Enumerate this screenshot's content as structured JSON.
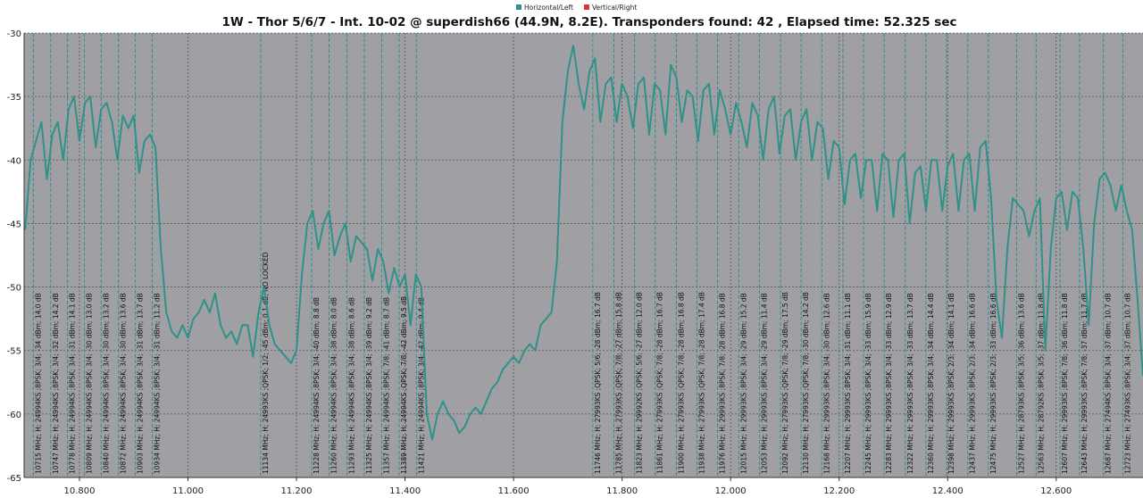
{
  "chart_data": {
    "type": "line",
    "title": "1W - Thor 5/6/7 - Int. 10-02 @ superdish66 (44.9N, 8.2E). Transponders found: 42 , Elapsed time: 52.325 sec",
    "xlim": [
      10698,
      12760
    ],
    "xticks": [
      {
        "value": 10800,
        "label": "10.800"
      },
      {
        "value": 11000,
        "label": "11.000"
      },
      {
        "value": 11200,
        "label": "11.200"
      },
      {
        "value": 11400,
        "label": "11.400"
      },
      {
        "value": 11600,
        "label": "11.600"
      },
      {
        "value": 11800,
        "label": "11.800"
      },
      {
        "value": 12000,
        "label": "12.000"
      },
      {
        "value": 12200,
        "label": "12.200"
      },
      {
        "value": 12400,
        "label": "12.400"
      },
      {
        "value": 12600,
        "label": "12.600"
      }
    ],
    "ylim": [
      -65,
      -30
    ],
    "yticks": [
      -30,
      -35,
      -40,
      -45,
      -50,
      -55,
      -60,
      -65
    ],
    "grid": true,
    "plot_color": "#a0a0a4",
    "x": [
      10700,
      10710,
      10720,
      10730,
      10740,
      10750,
      10760,
      10770,
      10780,
      10790,
      10800,
      10810,
      10820,
      10830,
      10840,
      10850,
      10860,
      10870,
      10880,
      10890,
      10900,
      10910,
      10920,
      10930,
      10940,
      10950,
      10960,
      10970,
      10980,
      10990,
      11000,
      11010,
      11020,
      11030,
      11040,
      11050,
      11060,
      11070,
      11080,
      11090,
      11100,
      11110,
      11120,
      11130,
      11140,
      11150,
      11160,
      11170,
      11180,
      11190,
      11200,
      11210,
      11220,
      11230,
      11240,
      11250,
      11260,
      11270,
      11280,
      11290,
      11300,
      11310,
      11320,
      11330,
      11340,
      11350,
      11360,
      11370,
      11380,
      11390,
      11400,
      11410,
      11420,
      11430,
      11440,
      11450,
      11460,
      11470,
      11480,
      11490,
      11500,
      11510,
      11520,
      11530,
      11540,
      11550,
      11560,
      11570,
      11580,
      11590,
      11600,
      11610,
      11620,
      11630,
      11640,
      11650,
      11660,
      11670,
      11680,
      11690,
      11700,
      11710,
      11720,
      11730,
      11740,
      11750,
      11760,
      11770,
      11780,
      11790,
      11800,
      11810,
      11820,
      11830,
      11840,
      11850,
      11860,
      11870,
      11880,
      11890,
      11900,
      11910,
      11920,
      11930,
      11940,
      11950,
      11960,
      11970,
      11980,
      11990,
      12000,
      12010,
      12020,
      12030,
      12040,
      12050,
      12060,
      12070,
      12080,
      12090,
      12100,
      12110,
      12120,
      12130,
      12140,
      12150,
      12160,
      12170,
      12180,
      12190,
      12200,
      12210,
      12220,
      12230,
      12240,
      12250,
      12260,
      12270,
      12280,
      12290,
      12300,
      12310,
      12320,
      12330,
      12340,
      12350,
      12360,
      12370,
      12380,
      12390,
      12400,
      12410,
      12420,
      12430,
      12440,
      12450,
      12460,
      12470,
      12480,
      12490,
      12500,
      12510,
      12520,
      12530,
      12540,
      12550,
      12560,
      12570,
      12580,
      12590,
      12600,
      12610,
      12620,
      12630,
      12640,
      12650,
      12660,
      12670,
      12680,
      12690,
      12700,
      12710,
      12720,
      12730,
      12740,
      12750,
      12760
    ],
    "series": [
      {
        "name": "Horizontal/Left",
        "color": "#2e918a",
        "values": [
          -45.5,
          -40,
          -38.5,
          -37,
          -41.5,
          -38,
          -37,
          -40,
          -36,
          -35,
          -38.5,
          -35.5,
          -35,
          -39,
          -36,
          -35.5,
          -37,
          -40,
          -36.5,
          -37.5,
          -36.5,
          -41,
          -38.5,
          -38,
          -39,
          -47,
          -52,
          -53.5,
          -54,
          -53,
          -54,
          -52.5,
          -52,
          -51,
          -52,
          -50.5,
          -53,
          -54,
          -53.5,
          -54.5,
          -53,
          -53,
          -55.5,
          -52,
          -50,
          -53,
          -54.5,
          -55,
          -55.5,
          -56,
          -55,
          -49,
          -45,
          -44,
          -47,
          -45,
          -44,
          -47.5,
          -46,
          -45,
          -48,
          -46,
          -46.5,
          -47,
          -49.5,
          -47,
          -48,
          -50.5,
          -48.5,
          -50,
          -49,
          -53,
          -49,
          -50,
          -60,
          -62,
          -60,
          -59,
          -60,
          -60.5,
          -61.5,
          -61,
          -60,
          -59.5,
          -60,
          -59,
          -58,
          -57.5,
          -56.5,
          -56,
          -55.5,
          -56,
          -55,
          -54.5,
          -55,
          -53,
          -52.5,
          -52,
          -48,
          -37,
          -33,
          -31,
          -34,
          -36,
          -33,
          -32,
          -37,
          -34,
          -33.5,
          -37,
          -34,
          -35,
          -37.5,
          -34,
          -33.5,
          -38,
          -34,
          -34.5,
          -38,
          -32.5,
          -33.5,
          -37,
          -34.5,
          -35,
          -38.5,
          -34.5,
          -34,
          -38,
          -34.5,
          -36,
          -38,
          -35.5,
          -37,
          -39,
          -35.5,
          -36.5,
          -40,
          -36,
          -35,
          -39.5,
          -36.5,
          -36,
          -40,
          -37,
          -36,
          -40,
          -37,
          -37.5,
          -41.5,
          -38.5,
          -39,
          -43.5,
          -40,
          -39.5,
          -43,
          -40,
          -40,
          -44,
          -39.5,
          -40,
          -44.5,
          -40,
          -39.5,
          -45,
          -41,
          -40.5,
          -44,
          -40,
          -40,
          -44,
          -40.5,
          -39.5,
          -44,
          -40,
          -39.5,
          -44,
          -39,
          -38.5,
          -43,
          -51,
          -54,
          -47,
          -43,
          -43.5,
          -44,
          -46,
          -44,
          -43,
          -55,
          -47,
          -43,
          -42.5,
          -45.5,
          -42.5,
          -43,
          -47,
          -53,
          -45,
          -41.5,
          -41,
          -42,
          -44,
          -42,
          -44,
          -45.5,
          -51,
          -57
        ]
      }
    ],
    "legend_items": [
      {
        "name": "Horizontal/Left",
        "color": "#2e918a"
      },
      {
        "name": "Vertical/Right",
        "color": "#d9343a"
      }
    ],
    "transponders": [
      {
        "freq": 10715,
        "label": "10715 MHz; H; 24994KS ;8PSK; 3/4; -34 dBm; 14.0 dB"
      },
      {
        "freq": 10747,
        "label": "10747 MHz; H; 24994KS ;8PSK; 3/4; -32 dBm; 14.2 dB"
      },
      {
        "freq": 10778,
        "label": "10778 MHz; H; 24994KS ;8PSK; 3/4; -31 dBm; 14.1 dB"
      },
      {
        "freq": 10809,
        "label": "10809 MHz; H; 24994KS ;8PSK; 3/4; -30 dBm; 13.0 dB"
      },
      {
        "freq": 10840,
        "label": "10840 MHz; H; 24994KS ;8PSK; 3/4; -30 dBm; 13.2 dB"
      },
      {
        "freq": 10872,
        "label": "10872 MHz; H; 24994KS ;8PSK; 3/4; -30 dBm; 13.6 dB"
      },
      {
        "freq": 10903,
        "label": "10903 MHz; H; 24994KS ;8PSK; 3/4; -31 dBm; 13.7 dB"
      },
      {
        "freq": 10934,
        "label": "10934 MHz; H; 24994KS ;8PSK; 3/4; -31 dBm; 11.2 dB"
      },
      {
        "freq": 11134,
        "label": "11134 MHz; H; 24993KS ;QPSK; 1/2; -45 dBm; 0.1 dB; NO LOCKED"
      },
      {
        "freq": 11228,
        "label": "11228 MHz; H; 24994KS ;8PSK; 3/4; -40 dBm; 8.8 dB"
      },
      {
        "freq": 11260,
        "label": "11260 MHz; H; 24994KS ;8PSK; 3/4; -38 dBm; 8.0 dB"
      },
      {
        "freq": 11293,
        "label": "11293 MHz; H; 24994KS ;8PSK; 3/4; -38 dBm; 8.6 dB"
      },
      {
        "freq": 11325,
        "label": "11325 MHz; H; 24994KS ;8PSK; 3/4; -39 dBm; 9.2 dB"
      },
      {
        "freq": 11357,
        "label": "11357 MHz; H; 24994KS ;8PSK; 7/8; -41 dBm; 8.7 dB"
      },
      {
        "freq": 11389,
        "label": "11389 MHz; H; 24994KS ;QPSK; 7/8; -42 dBm; 9.5 dB"
      },
      {
        "freq": 11421,
        "label": "11421 MHz; H; 24994KS ;8PSK; 3/4; -42 dBm; 9.4 dB"
      },
      {
        "freq": 11746,
        "label": "11746 MHz; H; 27993KS ;QPSK; 5/6; -28 dBm; 16.7 dB"
      },
      {
        "freq": 11785,
        "label": "11785 MHz; H; 27993KS ;QPSK; 7/8; -27 dBm; 15.8 dB"
      },
      {
        "freq": 11823,
        "label": "11823 MHz; H; 29992KS ;QPSK; 5/6; -27 dBm; 12.0 dB"
      },
      {
        "freq": 11861,
        "label": "11861 MHz; H; 27993KS ;QPSK; 7/8; -28 dBm; 16.7 dB"
      },
      {
        "freq": 11900,
        "label": "11900 MHz; H; 27993KS ;QPSK; 7/8; -28 dBm; 16.8 dB"
      },
      {
        "freq": 11938,
        "label": "11938 MHz; H; 27993KS ;QPSK; 7/8; -28 dBm; 17.4 dB"
      },
      {
        "freq": 11976,
        "label": "11976 MHz; H; 29993KS ;8PSK; 7/8; -28 dBm; 16.8 dB"
      },
      {
        "freq": 12015,
        "label": "12015 MHz; H; 29993KS ;8PSK; 3/4; -29 dBm; 15.2 dB"
      },
      {
        "freq": 12053,
        "label": "12053 MHz; H; 29993KS ;8PSK; 3/4; -29 dBm; 11.4 dB"
      },
      {
        "freq": 12092,
        "label": "12092 MHz; H; 27993KS ;QPSK; 7/8; -29 dBm; 17.5 dB"
      },
      {
        "freq": 12130,
        "label": "12130 MHz; H; 27993KS ;QPSK; 7/8; -30 dBm; 14.2 dB"
      },
      {
        "freq": 12168,
        "label": "12168 MHz; H; 29993KS ;8PSK; 3/4; -30 dBm; 12.6 dB"
      },
      {
        "freq": 12207,
        "label": "12207 MHz; H; 29993KS ;8PSK; 3/4; -31 dBm; 11.1 dB"
      },
      {
        "freq": 12245,
        "label": "12245 MHz; H; 29993KS ;8PSK; 3/4; -33 dBm; 15.9 dB"
      },
      {
        "freq": 12283,
        "label": "12283 MHz; H; 29993KS ;8PSK; 3/4; -33 dBm; 12.9 dB"
      },
      {
        "freq": 12322,
        "label": "12322 MHz; H; 29993KS ;8PSK; 3/4; -33 dBm; 13.7 dB"
      },
      {
        "freq": 12360,
        "label": "12360 MHz; H; 29993KS ;8PSK; 3/4; -34 dBm; 14.4 dB"
      },
      {
        "freq": 12398,
        "label": "12398 MHz; H; 29993KS ;8PSK; 2/3; -34 dBm; 14.1 dB"
      },
      {
        "freq": 12437,
        "label": "12437 MHz; H; 29993KS ;8PSK; 2/3; -34 dBm; 16.6 dB"
      },
      {
        "freq": 12475,
        "label": "12475 MHz; H; 29993KS ;8PSK; 2/3; -33 dBm; 16.6 dB"
      },
      {
        "freq": 12527,
        "label": "12527 MHz; H; 28793KS ;8PSK; 3/5; -36 dBm; 13.6 dB"
      },
      {
        "freq": 12563,
        "label": "12563 MHz; H; 28792KS ;8PSK; 3/5; -37 dBm; 11.8 dB"
      },
      {
        "freq": 12607,
        "label": "12607 MHz; H; 29993KS ;8PSK; 7/8; -36 dBm; 11.8 dB"
      },
      {
        "freq": 12643,
        "label": "12643 MHz; H; 29993KS ;8PSK; 7/8; -37 dBm; 11.7 dB"
      },
      {
        "freq": 12687,
        "label": "12687 MHz; H; 27494KS ;8PSK; 3/4; -37 dBm; 10.7 dB"
      },
      {
        "freq": 12723,
        "label": "12723 MHz; H; 27493KS ;8PSK; 3/4; -37 dBm; 10.7 dB"
      }
    ]
  }
}
